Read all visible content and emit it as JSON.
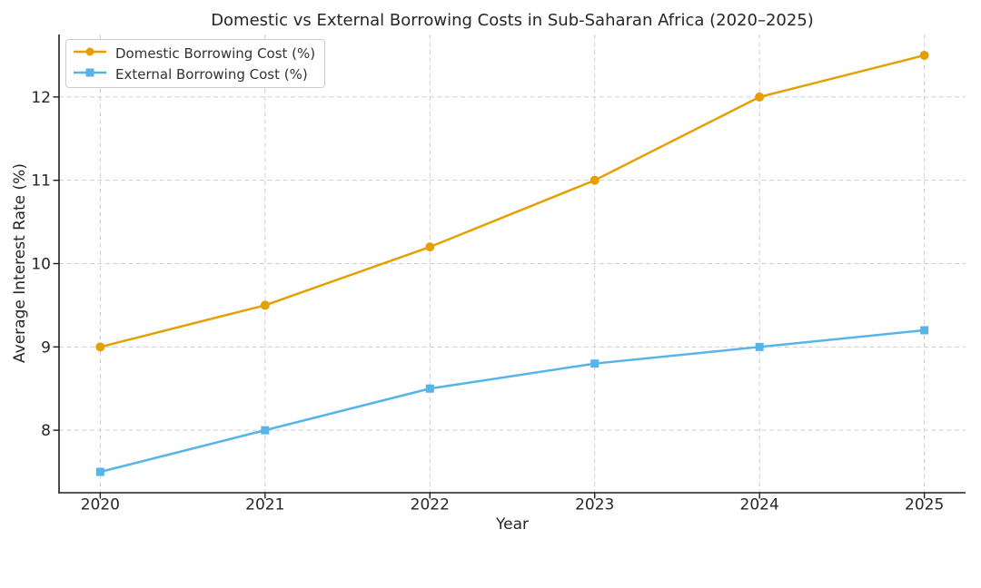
{
  "chart_data": {
    "type": "line",
    "title": "Domestic vs External Borrowing Costs in Sub-Saharan Africa (2020–2025)",
    "xlabel": "Year",
    "ylabel": "Average Interest Rate (%)",
    "x": [
      2020,
      2021,
      2022,
      2023,
      2024,
      2025
    ],
    "series": [
      {
        "name": "Domestic Borrowing Cost (%)",
        "marker": "circle",
        "color": "#E69F00",
        "values": [
          9.0,
          9.5,
          10.2,
          11.0,
          12.0,
          12.5
        ]
      },
      {
        "name": "External Borrowing Cost (%)",
        "marker": "square",
        "color": "#56B4E9",
        "values": [
          7.5,
          8.0,
          8.5,
          8.8,
          9.0,
          9.2
        ]
      }
    ],
    "yticks": [
      8,
      9,
      10,
      11,
      12
    ],
    "xlim": [
      2019.75,
      2025.25
    ],
    "ylim": [
      7.25,
      12.75
    ],
    "grid": true,
    "grid_style": "dashed",
    "legend_position": "upper left",
    "colors": {
      "axis": "#1f1f1f",
      "text": "#262626",
      "grid": "#cfcfcf",
      "background": "#ffffff"
    }
  }
}
